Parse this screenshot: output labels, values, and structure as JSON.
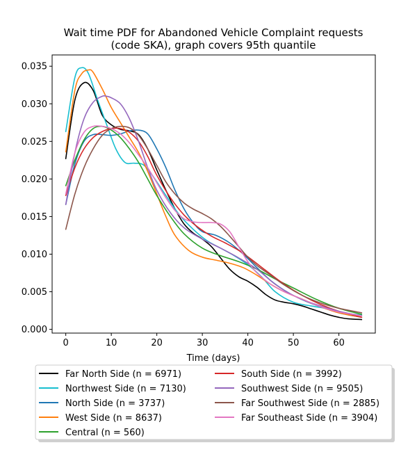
{
  "chart_data": {
    "type": "line",
    "title_line1": "Wait time PDF for Abandoned Vehicle Complaint  requests",
    "title_line2": "(code SKA), graph covers 95th quantile",
    "xlabel": "Time (days)",
    "ylabel": "",
    "xlim": [
      -3,
      68
    ],
    "ylim": [
      -0.0005,
      0.0365
    ],
    "xticks": [
      0,
      10,
      20,
      30,
      40,
      50,
      60
    ],
    "yticks": [
      0.0,
      0.005,
      0.01,
      0.015,
      0.02,
      0.025,
      0.03,
      0.035
    ],
    "xtick_labels": [
      "0",
      "10",
      "20",
      "30",
      "40",
      "50",
      "60"
    ],
    "ytick_labels": [
      "0.000",
      "0.005",
      "0.010",
      "0.015",
      "0.020",
      "0.025",
      "0.030",
      "0.035"
    ],
    "grid": false,
    "legend_placement": "below plot, two columns",
    "series": [
      {
        "name": "Far North Side (n = 6971)",
        "color": "#000000",
        "x": [
          0,
          2,
          4,
          6,
          8,
          10,
          12,
          14,
          16,
          18,
          20,
          22,
          24,
          26,
          28,
          30,
          32,
          34,
          36,
          38,
          40,
          42,
          44,
          46,
          48,
          50,
          52,
          54,
          56,
          58,
          60,
          62,
          65
        ],
        "y": [
          0.0227,
          0.0305,
          0.0328,
          0.0318,
          0.0285,
          0.0272,
          0.0266,
          0.0264,
          0.0259,
          0.024,
          0.0212,
          0.0185,
          0.016,
          0.014,
          0.0128,
          0.012,
          0.011,
          0.0095,
          0.008,
          0.007,
          0.0064,
          0.0056,
          0.0046,
          0.0039,
          0.0036,
          0.0034,
          0.0031,
          0.0027,
          0.0023,
          0.0019,
          0.0016,
          0.0014,
          0.0013
        ]
      },
      {
        "name": "Northwest Side (n = 7130)",
        "color": "#17becf",
        "x": [
          0,
          2,
          3.5,
          5,
          7,
          9,
          11,
          13,
          15,
          17,
          19,
          22,
          25,
          28,
          31,
          34,
          37,
          40,
          43,
          46,
          50,
          54,
          58,
          62,
          65
        ],
        "y": [
          0.0263,
          0.0335,
          0.0348,
          0.034,
          0.0305,
          0.0272,
          0.024,
          0.0222,
          0.0221,
          0.0219,
          0.0205,
          0.0178,
          0.0152,
          0.0133,
          0.0118,
          0.0108,
          0.0098,
          0.0086,
          0.007,
          0.005,
          0.0036,
          0.0031,
          0.0027,
          0.0021,
          0.0019
        ]
      },
      {
        "name": "North Side (n = 3737)",
        "color": "#1f77b4",
        "x": [
          0,
          2,
          4,
          6,
          8,
          10,
          12,
          14,
          16,
          18,
          20,
          22,
          24,
          26,
          28,
          30,
          33,
          36,
          39,
          42,
          45,
          48,
          51,
          55,
          60,
          65
        ],
        "y": [
          0.0166,
          0.022,
          0.025,
          0.0259,
          0.0259,
          0.0258,
          0.026,
          0.0264,
          0.0265,
          0.026,
          0.024,
          0.0215,
          0.0185,
          0.016,
          0.0142,
          0.013,
          0.0125,
          0.0115,
          0.01,
          0.0082,
          0.0065,
          0.0052,
          0.0042,
          0.0032,
          0.0022,
          0.0016
        ]
      },
      {
        "name": "West Side (n = 8637)",
        "color": "#ff7f0e",
        "x": [
          0,
          2,
          3.5,
          5,
          6,
          8,
          10,
          12,
          14,
          16,
          18,
          20,
          22,
          24,
          27,
          30,
          33,
          36,
          39,
          42,
          45,
          48,
          52,
          56,
          60,
          65
        ],
        "y": [
          0.0236,
          0.0318,
          0.034,
          0.0345,
          0.0342,
          0.032,
          0.0295,
          0.0275,
          0.0255,
          0.0235,
          0.021,
          0.018,
          0.015,
          0.0125,
          0.0105,
          0.0096,
          0.0092,
          0.0088,
          0.0082,
          0.0072,
          0.006,
          0.005,
          0.004,
          0.003,
          0.0022,
          0.0016
        ]
      },
      {
        "name": "Central (n = 560)",
        "color": "#2ca02c",
        "x": [
          0,
          2,
          4,
          6,
          8,
          10,
          12,
          14,
          16,
          18,
          20,
          23,
          26,
          30,
          34,
          38,
          42,
          46,
          50,
          55,
          60,
          65
        ],
        "y": [
          0.0191,
          0.0225,
          0.0252,
          0.0267,
          0.027,
          0.0265,
          0.0255,
          0.024,
          0.0222,
          0.02,
          0.0178,
          0.015,
          0.0127,
          0.0108,
          0.0098,
          0.009,
          0.008,
          0.0067,
          0.0055,
          0.004,
          0.0028,
          0.002
        ]
      },
      {
        "name": "South Side (n = 3992)",
        "color": "#d62728",
        "x": [
          0,
          2,
          4,
          6,
          8,
          10,
          12,
          14,
          16,
          18,
          20,
          23,
          26,
          29,
          32,
          35,
          38,
          41,
          44,
          48,
          52,
          56,
          60,
          65
        ],
        "y": [
          0.0178,
          0.0215,
          0.024,
          0.0255,
          0.0263,
          0.0267,
          0.0267,
          0.0262,
          0.025,
          0.023,
          0.0205,
          0.0175,
          0.0152,
          0.0136,
          0.0124,
          0.0115,
          0.0105,
          0.0092,
          0.0078,
          0.006,
          0.0045,
          0.0033,
          0.0024,
          0.0016
        ]
      },
      {
        "name": "Southwest Side (n = 9505)",
        "color": "#9467bd",
        "x": [
          0,
          2,
          4,
          6,
          8,
          9,
          10,
          12,
          14,
          16,
          18,
          20,
          23,
          26,
          30,
          34,
          38,
          42,
          46,
          50,
          55,
          60,
          65
        ],
        "y": [
          0.0166,
          0.0235,
          0.028,
          0.0302,
          0.031,
          0.031,
          0.0308,
          0.03,
          0.028,
          0.025,
          0.0215,
          0.0185,
          0.0155,
          0.0135,
          0.012,
          0.0108,
          0.0095,
          0.008,
          0.006,
          0.0045,
          0.0033,
          0.0024,
          0.0018
        ]
      },
      {
        "name": "Far Southwest Side (n = 2885)",
        "color": "#8c564b",
        "x": [
          0,
          2,
          4,
          6,
          8,
          10,
          12,
          14,
          16,
          18,
          20,
          22,
          24,
          26,
          28,
          30,
          32,
          34,
          36,
          38,
          40,
          42,
          45,
          48,
          52,
          56,
          60,
          65
        ],
        "y": [
          0.0133,
          0.018,
          0.0215,
          0.024,
          0.0258,
          0.0267,
          0.027,
          0.0268,
          0.0258,
          0.024,
          0.0218,
          0.0196,
          0.018,
          0.0168,
          0.016,
          0.0154,
          0.0147,
          0.0137,
          0.0124,
          0.011,
          0.0096,
          0.0085,
          0.0072,
          0.0059,
          0.0045,
          0.0035,
          0.0028,
          0.0022
        ]
      },
      {
        "name": "Far Southeast Side (n = 3904)",
        "color": "#e377c2",
        "x": [
          0,
          2,
          4,
          6,
          8,
          10,
          12,
          14,
          16,
          18,
          20,
          22,
          24,
          26,
          28,
          30,
          32,
          34,
          36,
          38,
          40,
          42,
          45,
          48,
          52,
          56,
          60,
          65
        ],
        "y": [
          0.018,
          0.0235,
          0.0262,
          0.027,
          0.027,
          0.0267,
          0.026,
          0.0248,
          0.0232,
          0.0215,
          0.0195,
          0.0175,
          0.0158,
          0.0147,
          0.0143,
          0.0142,
          0.0142,
          0.014,
          0.013,
          0.011,
          0.009,
          0.0075,
          0.006,
          0.005,
          0.004,
          0.003,
          0.0023,
          0.0018
        ]
      }
    ]
  }
}
